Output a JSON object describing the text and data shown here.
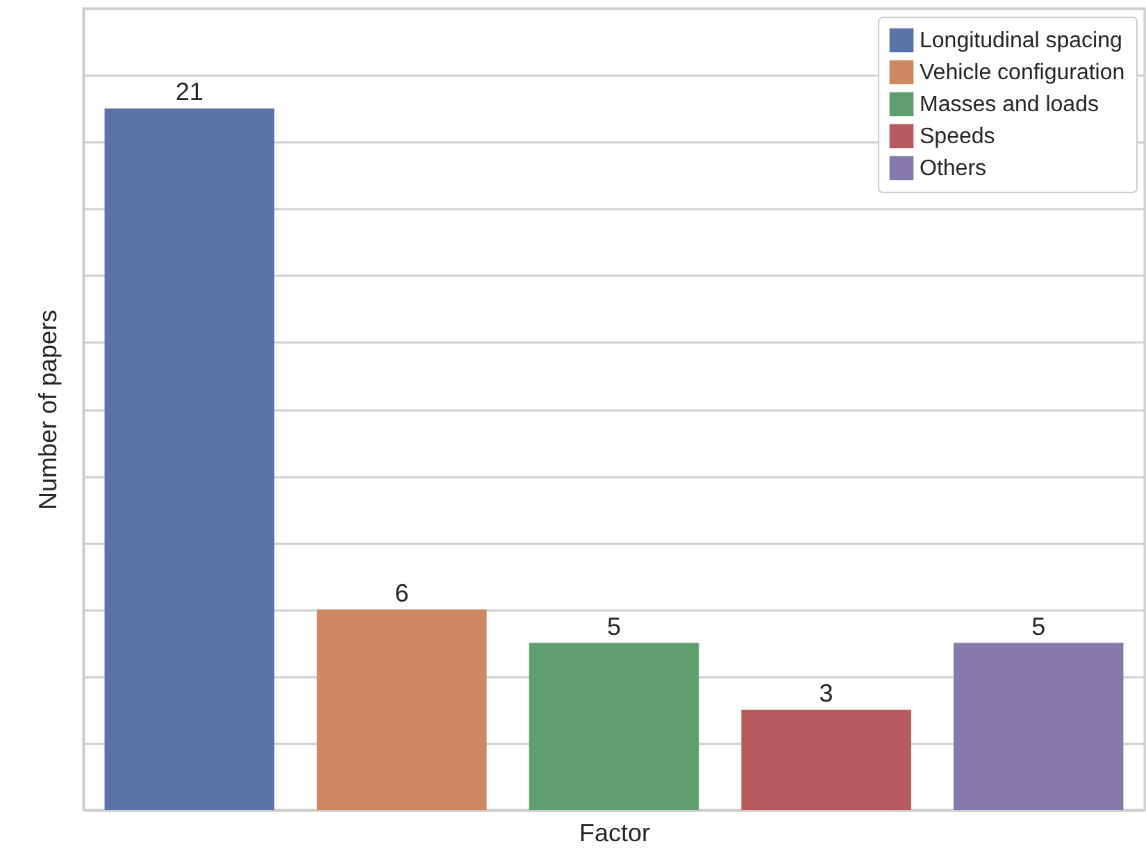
{
  "chart_data": {
    "type": "bar",
    "xlabel": "Factor",
    "ylabel": "Number of papers",
    "categories": [
      null,
      null,
      null,
      null,
      null
    ],
    "stacked": true,
    "series": [
      {
        "name": "Longitudinal spacing",
        "color": "#5874a8",
        "values": [
          21,
          null,
          null,
          null,
          null
        ]
      },
      {
        "name": "Vehicle configuration",
        "color": "#cc8861",
        "values": [
          null,
          6,
          null,
          null,
          null
        ]
      },
      {
        "name": "Masses and loads",
        "color": "#5f9e6e",
        "values": [
          null,
          null,
          5,
          null,
          null
        ]
      },
      {
        "name": "Speeds",
        "color": "#b65b5f",
        "values": [
          null,
          null,
          null,
          3,
          null
        ]
      },
      {
        "name": "Others",
        "color": "#857aab",
        "values": [
          null,
          null,
          null,
          null,
          5
        ]
      }
    ],
    "ylim": [
      0,
      24
    ],
    "yticks": [
      {
        "value": 0,
        "label": null
      },
      {
        "value": 2,
        "label": null
      },
      {
        "value": 4,
        "label": null
      },
      {
        "value": 6,
        "label": null
      },
      {
        "value": 8,
        "label": null
      },
      {
        "value": 10,
        "label": null
      },
      {
        "value": 12,
        "label": null
      },
      {
        "value": 14,
        "label": null
      },
      {
        "value": 16,
        "label": null
      },
      {
        "value": 18,
        "label": null
      },
      {
        "value": 20,
        "label": null
      },
      {
        "value": 22,
        "label": null
      },
      {
        "value": 24,
        "label": null
      }
    ],
    "grid": "y",
    "legend": "top right",
    "data_labels": true
  }
}
